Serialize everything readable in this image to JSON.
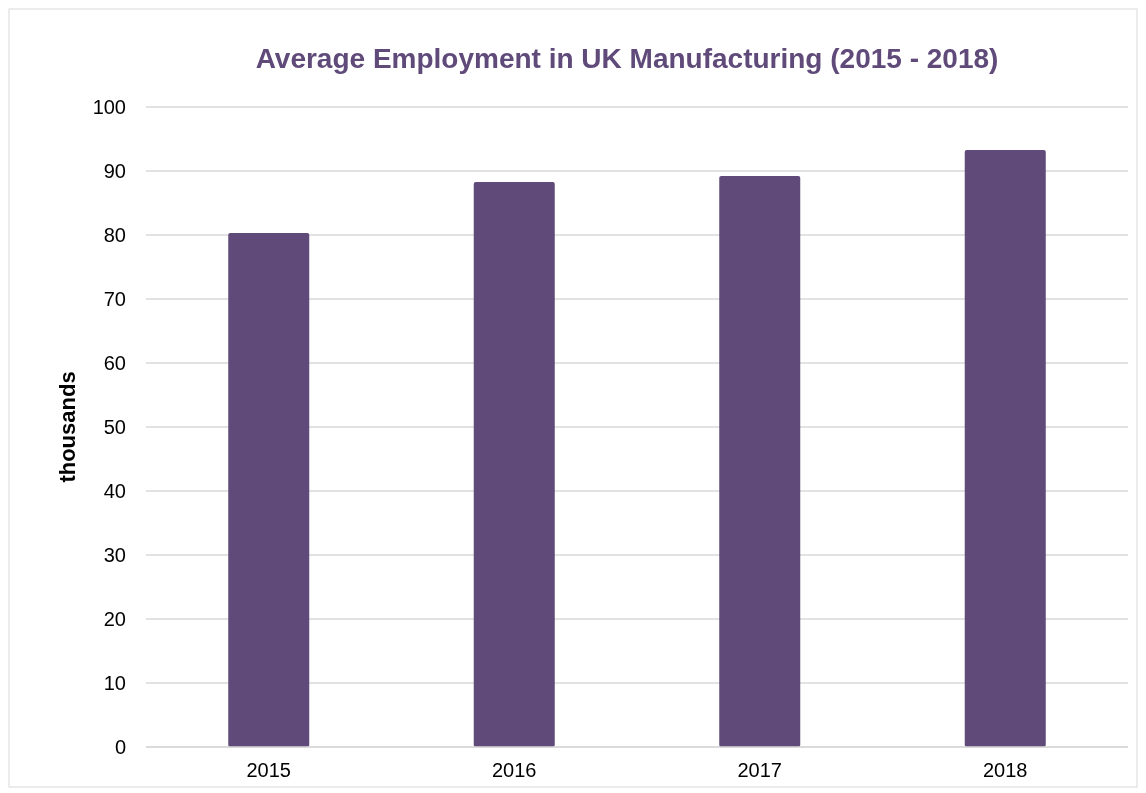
{
  "chart_data": {
    "type": "bar",
    "title": "Average Employment in UK Manufacturing (2015 - 2018)",
    "ylabel": "thousands",
    "categories": [
      "2015",
      "2016",
      "2017",
      "2018"
    ],
    "values": [
      80.3,
      88.3,
      89.2,
      93.3
    ],
    "color": "#5f4a7a",
    "ylim": [
      0,
      100
    ],
    "yticks": [
      0,
      10,
      20,
      30,
      40,
      50,
      60,
      70,
      80,
      90,
      100
    ],
    "grid": "y"
  }
}
